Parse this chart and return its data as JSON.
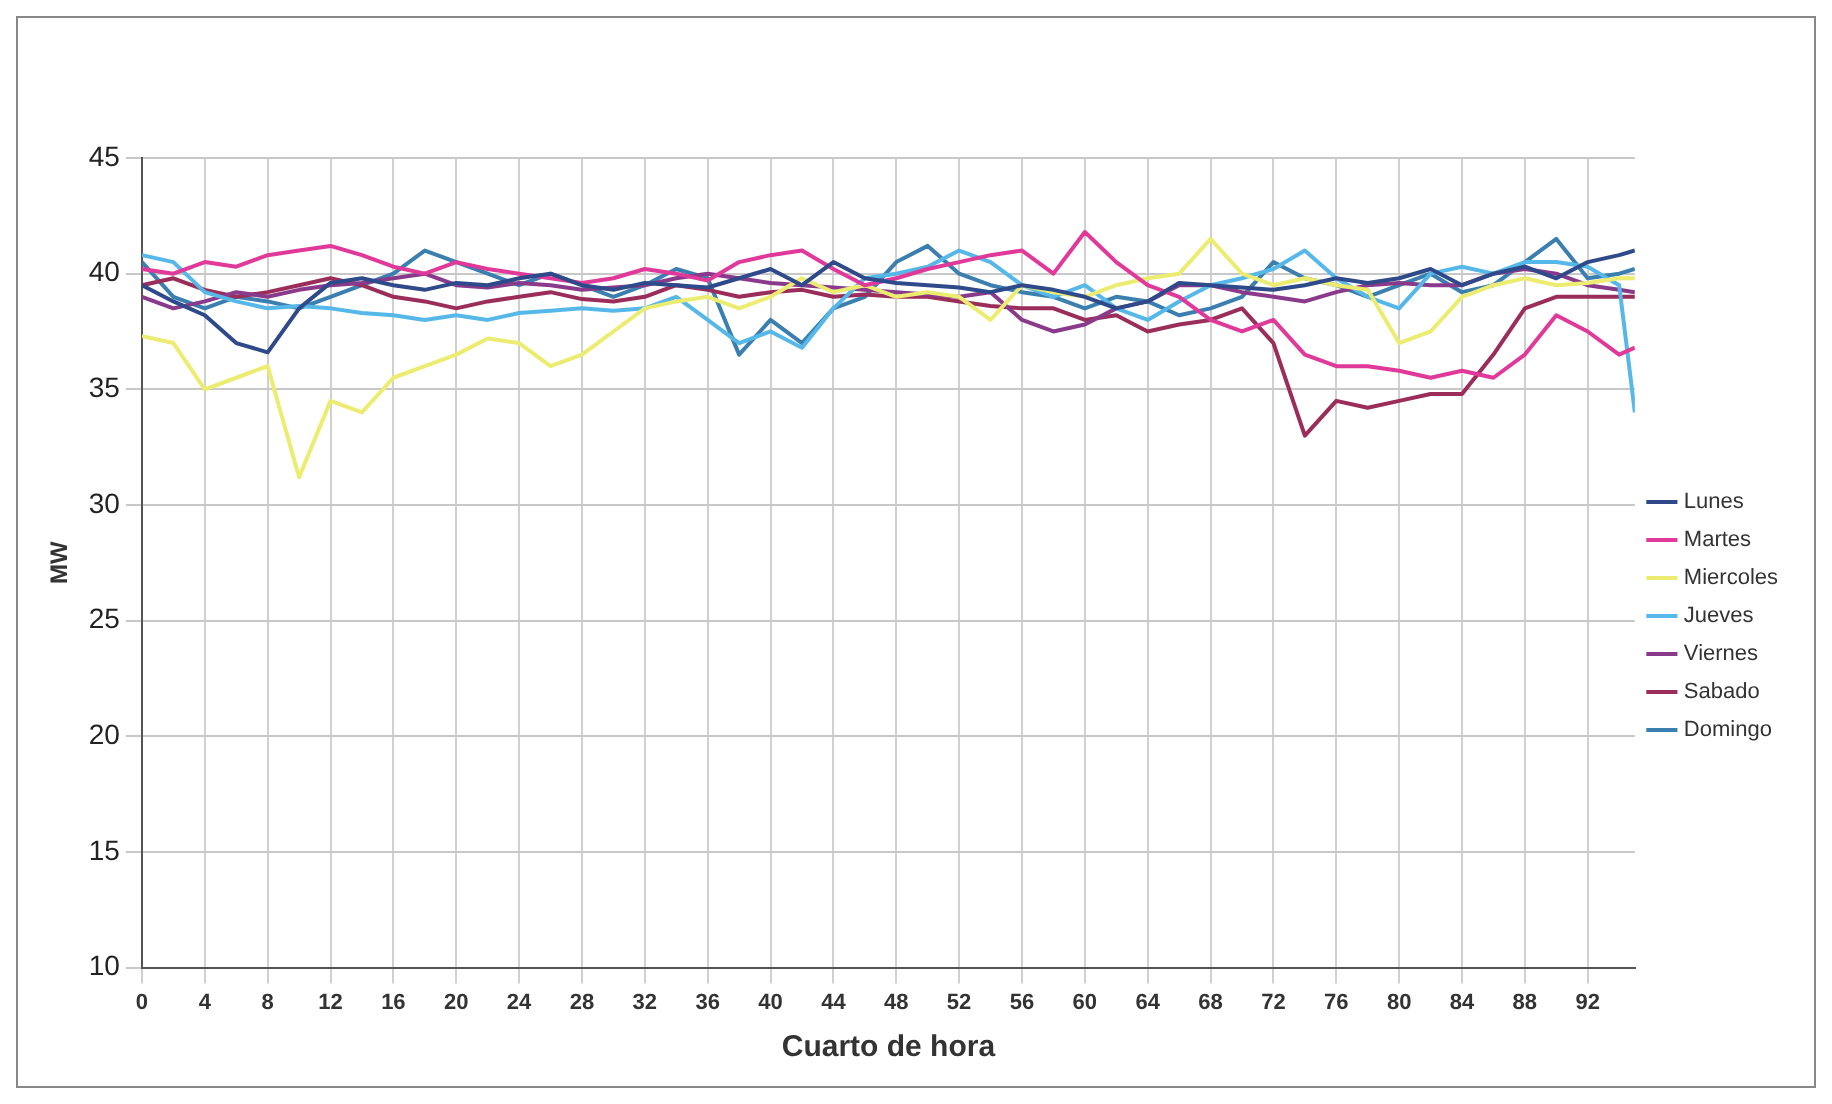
{
  "chart_data": {
    "type": "line",
    "xlabel": "Cuarto de hora",
    "ylabel": "MW",
    "x": [
      0,
      2,
      4,
      6,
      8,
      10,
      12,
      14,
      16,
      18,
      20,
      22,
      24,
      26,
      28,
      30,
      32,
      34,
      36,
      38,
      40,
      42,
      44,
      46,
      48,
      50,
      52,
      54,
      56,
      58,
      60,
      62,
      64,
      66,
      68,
      70,
      72,
      74,
      76,
      78,
      80,
      82,
      84,
      86,
      88,
      90,
      92,
      94,
      95
    ],
    "series": [
      {
        "name": "Lunes",
        "color": "#2e4a8a",
        "values": [
          39.5,
          38.8,
          38.2,
          37,
          36.6,
          38.5,
          39.6,
          39.8,
          39.5,
          39.3,
          39.6,
          39.5,
          39.8,
          40,
          39.5,
          39.3,
          39.6,
          39.5,
          39.4,
          39.8,
          40.2,
          39.5,
          40.5,
          39.8,
          39.6,
          39.5,
          39.4,
          39.2,
          39.5,
          39.3,
          39.0,
          38.5,
          38.8,
          39.6,
          39.5,
          39.4,
          39.3,
          39.5,
          39.8,
          39.6,
          39.8,
          40.2,
          39.5,
          40.0,
          40.3,
          39.8,
          40.5,
          40.8,
          41.0
        ]
      },
      {
        "name": "Martes",
        "color": "#e0399a",
        "values": [
          40.2,
          40.0,
          40.5,
          40.3,
          40.8,
          41.0,
          41.2,
          40.8,
          40.3,
          40.0,
          40.5,
          40.2,
          40.0,
          39.8,
          39.6,
          39.8,
          40.2,
          40.0,
          39.7,
          40.5,
          40.8,
          41.0,
          40.2,
          39.5,
          39.8,
          40.2,
          40.5,
          40.8,
          41.0,
          40.0,
          41.8,
          40.5,
          39.5,
          39.0,
          38.0,
          37.5,
          38.0,
          36.5,
          36.0,
          36.0,
          35.8,
          35.5,
          35.8,
          35.5,
          36.5,
          38.2,
          37.5,
          36.5,
          36.8
        ]
      },
      {
        "name": "Miercoles",
        "color": "#ecec70",
        "values": [
          37.3,
          37.0,
          35.0,
          35.5,
          36.0,
          31.2,
          34.5,
          34.0,
          35.5,
          36.0,
          36.5,
          37.2,
          37.0,
          36.0,
          36.5,
          37.5,
          38.5,
          38.8,
          39.0,
          38.5,
          39.0,
          39.8,
          39.2,
          39.5,
          39.0,
          39.2,
          39.0,
          38.0,
          39.5,
          39.2,
          39.0,
          39.5,
          39.8,
          40.0,
          41.5,
          40.0,
          39.5,
          39.8,
          39.5,
          39.3,
          37.0,
          37.5,
          39.0,
          39.5,
          39.8,
          39.5,
          39.6,
          39.8,
          39.8
        ]
      },
      {
        "name": "Jueves",
        "color": "#55b8e8",
        "values": [
          40.8,
          40.5,
          39.2,
          38.8,
          38.5,
          38.6,
          38.5,
          38.3,
          38.2,
          38.0,
          38.2,
          38.0,
          38.3,
          38.4,
          38.5,
          38.4,
          38.5,
          39.0,
          38.0,
          37.0,
          37.5,
          36.8,
          38.5,
          39.8,
          40.0,
          40.3,
          41.0,
          40.5,
          39.5,
          39.0,
          39.5,
          38.5,
          38.0,
          38.8,
          39.5,
          39.8,
          40.2,
          41.0,
          39.8,
          39.0,
          38.5,
          40.0,
          40.3,
          40.0,
          40.5,
          40.5,
          40.3,
          39.5,
          34.0
        ]
      },
      {
        "name": "Viernes",
        "color": "#8a3a8a",
        "values": [
          39.0,
          38.5,
          38.8,
          39.2,
          39.0,
          39.3,
          39.5,
          39.6,
          39.8,
          40.0,
          39.5,
          39.4,
          39.6,
          39.5,
          39.3,
          39.4,
          39.5,
          39.8,
          40.0,
          39.8,
          39.6,
          39.5,
          39.4,
          39.3,
          39.2,
          39.1,
          39.0,
          39.2,
          38.0,
          37.5,
          37.8,
          38.5,
          38.8,
          39.5,
          39.5,
          39.2,
          39.0,
          38.8,
          39.2,
          39.5,
          39.6,
          39.5,
          39.5,
          40.0,
          40.2,
          40.0,
          39.5,
          39.3,
          39.2
        ]
      },
      {
        "name": "Sabado",
        "color": "#9b2d5a",
        "values": [
          39.5,
          39.8,
          39.3,
          39.0,
          39.2,
          39.5,
          39.8,
          39.5,
          39.0,
          38.8,
          38.5,
          38.8,
          39.0,
          39.2,
          38.9,
          38.8,
          39.0,
          39.5,
          39.3,
          39.0,
          39.2,
          39.3,
          39.0,
          39.1,
          39.0,
          39.0,
          38.8,
          38.6,
          38.5,
          38.5,
          38.0,
          38.2,
          37.5,
          37.8,
          38.0,
          38.5,
          37.0,
          33.0,
          34.5,
          34.2,
          34.5,
          34.8,
          34.8,
          36.5,
          38.5,
          39.0,
          39.0,
          39.0,
          39.0
        ]
      },
      {
        "name": "Domingo",
        "color": "#3a7fb0",
        "values": [
          40.5,
          39.0,
          38.5,
          39.0,
          38.8,
          38.5,
          39.0,
          39.5,
          40.0,
          41.0,
          40.5,
          40.0,
          39.5,
          40.0,
          39.5,
          39.0,
          39.5,
          40.2,
          39.8,
          36.5,
          38.0,
          37.0,
          38.5,
          39.0,
          40.5,
          41.2,
          40.0,
          39.5,
          39.2,
          39.0,
          38.5,
          39.0,
          38.8,
          38.2,
          38.5,
          39.0,
          40.5,
          39.8,
          39.5,
          39.0,
          39.5,
          40.0,
          39.2,
          39.5,
          40.5,
          41.5,
          39.8,
          40.0,
          40.2
        ]
      }
    ],
    "xlim": [
      0,
      95
    ],
    "xticks": [
      0,
      4,
      8,
      12,
      16,
      20,
      24,
      28,
      32,
      36,
      40,
      44,
      48,
      52,
      56,
      60,
      64,
      68,
      72,
      76,
      80,
      84,
      88,
      92
    ],
    "ylim": [
      10,
      45
    ],
    "yticks": [
      10,
      15,
      20,
      25,
      30,
      35,
      40,
      45
    ],
    "grid": true,
    "legend": "right",
    "marker": "none",
    "line_style": "solid"
  }
}
